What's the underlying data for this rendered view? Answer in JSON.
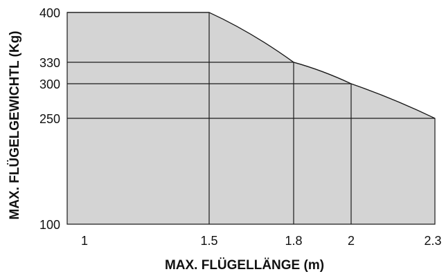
{
  "chart_data": {
    "type": "area",
    "xlabel": "MAX. FLÜGELLÄNGE (m)",
    "ylabel": "MAX. FLÜGELGEWICHTL (Kg)",
    "x_ticks": [
      1,
      1.5,
      1.8,
      2,
      2.3
    ],
    "x_tick_labels": [
      "1",
      "1.5",
      "1.8",
      "2",
      "2.3"
    ],
    "y_ticks": [
      100,
      250,
      300,
      330,
      400
    ],
    "y_tick_labels": [
      "100",
      "250",
      "300",
      "330",
      "400"
    ],
    "xlim": [
      1,
      2.3
    ],
    "ylim": [
      100,
      400
    ],
    "series": [
      {
        "x": [
          1,
          1.5,
          1.8,
          2,
          2.3
        ],
        "y": [
          400,
          400,
          330,
          300,
          250
        ]
      }
    ],
    "grid": true,
    "colors": {
      "fill": "#d4d4d4",
      "line": "#1a1a1a"
    }
  }
}
